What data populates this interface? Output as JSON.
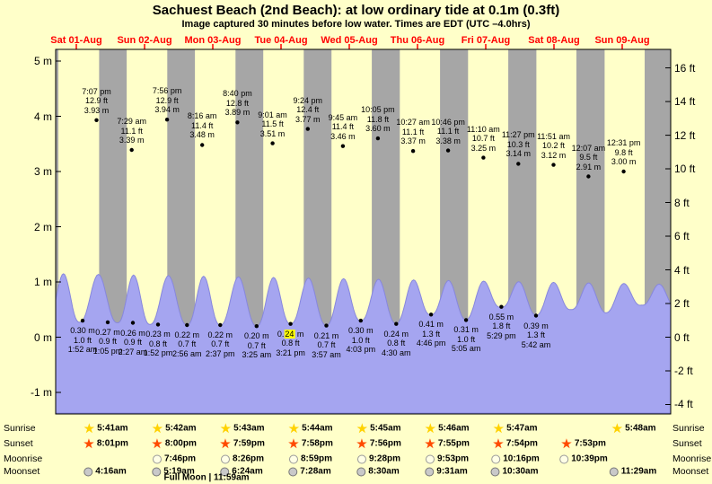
{
  "title": "Sachuest Beach (2nd Beach): at low  ordinary tide at 0.1m (0.3ft)",
  "subtitle": "Image captured 30 minutes before low water. Times are EDT (UTC –4.0hrs)",
  "chart_data": {
    "type": "area",
    "x_days": [
      "Sat 01-Aug",
      "Sun 02-Aug",
      "Mon 03-Aug",
      "Tue 04-Aug",
      "Wed 05-Aug",
      "Thu 06-Aug",
      "Fri 07-Aug",
      "Sat 08-Aug",
      "Sun 09-Aug"
    ],
    "y_axis_left": {
      "unit": "m",
      "ticks": [
        5,
        4,
        3,
        2,
        1,
        0,
        -1
      ],
      "suffix": " m"
    },
    "y_axis_right": {
      "unit": "ft",
      "ticks": [
        16,
        14,
        12,
        10,
        8,
        6,
        4,
        2,
        0,
        -2,
        -4
      ],
      "suffix": " ft"
    },
    "ylim_m": [
      -1.39,
      5.21
    ],
    "high_tides": [
      {
        "day": 0,
        "time": "7:07 pm",
        "ft": "12.9 ft",
        "m": "3.93 m"
      },
      {
        "day": 1,
        "time": "7:29 am",
        "ft": "11.1 ft",
        "m": "3.39 m"
      },
      {
        "day": 1,
        "time": "7:56 pm",
        "ft": "12.9 ft",
        "m": "3.94 m"
      },
      {
        "day": 2,
        "time": "8:16 am",
        "ft": "11.4 ft",
        "m": "3.48 m"
      },
      {
        "day": 2,
        "time": "8:40 pm",
        "ft": "12.8 ft",
        "m": "3.89 m"
      },
      {
        "day": 3,
        "time": "9:01 am",
        "ft": "11.5 ft",
        "m": "3.51 m"
      },
      {
        "day": 3,
        "time": "9:24 pm",
        "ft": "12.4 ft",
        "m": "3.77 m"
      },
      {
        "day": 4,
        "time": "9:45 am",
        "ft": "11.4 ft",
        "m": "3.46 m"
      },
      {
        "day": 4,
        "time": "10:05 pm",
        "ft": "11.8 ft",
        "m": "3.60 m"
      },
      {
        "day": 5,
        "time": "10:27 am",
        "ft": "11.1 ft",
        "m": "3.37 m"
      },
      {
        "day": 5,
        "time": "10:46 pm",
        "ft": "11.1 ft",
        "m": "3.38 m"
      },
      {
        "day": 6,
        "time": "11:10 am",
        "ft": "10.7 ft",
        "m": "3.25 m"
      },
      {
        "day": 6,
        "time": "11:27 pm",
        "ft": "10.3 ft",
        "m": "3.14 m"
      },
      {
        "day": 7,
        "time": "11:51 am",
        "ft": "10.2 ft",
        "m": "3.12 m"
      },
      {
        "day": 8,
        "time": "12:07 am",
        "ft": "9.5 ft",
        "m": "2.91 m"
      },
      {
        "day": 8,
        "time": "12:31 pm",
        "ft": "9.8 ft",
        "m": "3.00 m"
      }
    ],
    "low_tides": [
      {
        "day": 0,
        "m": "0.30 m",
        "ft": "1.0 ft",
        "time": "1:52 am",
        "highlight": false
      },
      {
        "day": 0,
        "m": "0.27 m",
        "ft": "0.9 ft",
        "time": "1:05 pm",
        "highlight": false
      },
      {
        "day": 1,
        "m": "0.26 m",
        "ft": "0.9 ft",
        "time": "2:27 am",
        "highlight": false
      },
      {
        "day": 1,
        "m": "0.23 m",
        "ft": "0.8 ft",
        "time": "1:52 pm",
        "highlight": false
      },
      {
        "day": 2,
        "m": "0.22 m",
        "ft": "0.7 ft",
        "time": "2:56 am",
        "highlight": false
      },
      {
        "day": 2,
        "m": "0.22 m",
        "ft": "0.7 ft",
        "time": "2:37 pm",
        "highlight": false
      },
      {
        "day": 3,
        "m": "0.20 m",
        "ft": "0.7 ft",
        "time": "3:25 am",
        "highlight": false
      },
      {
        "day": 3,
        "m": "0.24 m",
        "ft": "0.8 ft",
        "time": "3:21 pm",
        "highlight": true
      },
      {
        "day": 4,
        "m": "0.21 m",
        "ft": "0.7 ft",
        "time": "3:57 am",
        "highlight": false
      },
      {
        "day": 4,
        "m": "0.30 m",
        "ft": "1.0 ft",
        "time": "4:03 pm",
        "highlight": false
      },
      {
        "day": 5,
        "m": "0.24 m",
        "ft": "0.8 ft",
        "time": "4:30 am",
        "highlight": false
      },
      {
        "day": 5,
        "m": "0.41 m",
        "ft": "1.3 ft",
        "time": "4:46 pm",
        "highlight": false
      },
      {
        "day": 6,
        "m": "0.31 m",
        "ft": "1.0 ft",
        "time": "5:05 am",
        "highlight": false
      },
      {
        "day": 6,
        "m": "0.55 m",
        "ft": "1.8 ft",
        "time": "5:29 pm",
        "highlight": false
      },
      {
        "day": 7,
        "m": "0.39 m",
        "ft": "1.3 ft",
        "time": "5:42 am",
        "highlight": false
      }
    ]
  },
  "astro": {
    "rows": [
      {
        "label": "Sunrise",
        "icon": "sunrise-star",
        "times": [
          "5:41am",
          "5:42am",
          "5:43am",
          "5:44am",
          "5:45am",
          "5:46am",
          "5:47am",
          "5:48am"
        ]
      },
      {
        "label": "Sunset",
        "icon": "sunset-star",
        "times": [
          "8:01pm",
          "8:00pm",
          "7:59pm",
          "7:58pm",
          "7:56pm",
          "7:55pm",
          "7:54pm",
          "7:53pm"
        ]
      },
      {
        "label": "Moonrise",
        "icon": "moonrise-disc",
        "times": [
          "7:46pm",
          "8:26pm",
          "8:59pm",
          "9:28pm",
          "9:53pm",
          "10:16pm",
          "10:39pm"
        ]
      },
      {
        "label": "Moonset",
        "icon": "moonset-disc",
        "times": [
          "4:16am",
          "5:19am",
          "6:24am",
          "7:28am",
          "8:30am",
          "9:31am",
          "10:30am",
          "11:29am"
        ]
      }
    ],
    "full_moon": "Full Moon | 11:59am"
  },
  "colors": {
    "page_bg": "#ffffc9",
    "night_band": "#a6a6a6",
    "tide_fill": "#a5a5f0",
    "tide_stroke": "#8787dd",
    "day_label": "#ff0000",
    "highlight": "#ffff00",
    "sunrise_star": "#ffd200",
    "sunset_star": "#ff4a00",
    "moonrise_disc": "#ffffe6",
    "moonset_disc": "#c9c9c9"
  }
}
